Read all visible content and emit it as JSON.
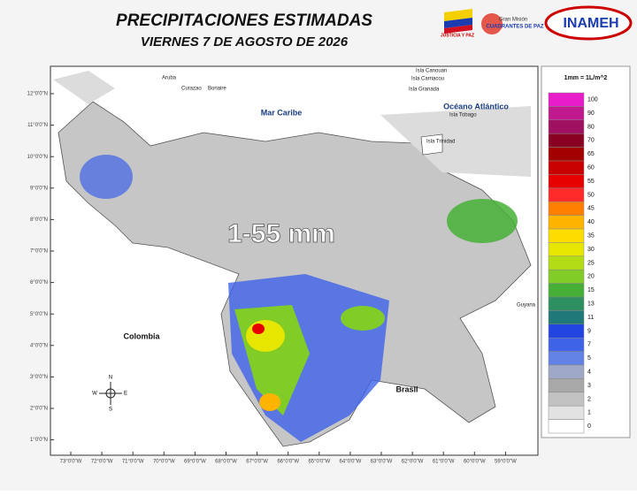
{
  "header": {
    "title": "PRECIPITACIONES  ESTIMADAS",
    "subtitle": "VIERNES 7 DE AGOSTO DE 2026",
    "logos": [
      "JUSTICIA Y PAZ",
      "Gran Misión",
      "CUADRANTES DE PAZ",
      "INAMEH"
    ]
  },
  "map": {
    "headline": "1-55 mm",
    "places": [
      "Aruba",
      "Curazao",
      "Bonaire",
      "Isla Canouan",
      "Isla Carriacou",
      "Isla Granada",
      "Isla Tobago",
      "Isla Trinidad",
      "Guyana"
    ],
    "regions": [
      "Mar Caribe",
      "Océano Atlántico",
      "Colombia",
      "Brasil"
    ],
    "compass": [
      "N",
      "S",
      "E",
      "W"
    ],
    "latitudes": [
      "12°0'0\"N",
      "11°0'0\"N",
      "10°0'0\"N",
      "9°0'0\"N",
      "8°0'0\"N",
      "7°0'0\"N",
      "6°0'0\"N",
      "5°0'0\"N",
      "4°0'0\"N",
      "3°0'0\"N",
      "2°0'0\"N",
      "1°0'0\"N"
    ],
    "longitudes": [
      "73°0'0\"W",
      "72°0'0\"W",
      "71°0'0\"W",
      "70°0'0\"W",
      "69°0'0\"W",
      "68°0'0\"W",
      "67°0'0\"W",
      "66°0'0\"W",
      "65°0'0\"W",
      "64°0'0\"W",
      "63°0'0\"W",
      "62°0'0\"W",
      "61°0'0\"W",
      "60°0'0\"W",
      "59°0'0\"W"
    ]
  },
  "legend": {
    "unit": "1mm = 1L/m^2",
    "items": [
      {
        "label": "100",
        "color": "#e81cc8"
      },
      {
        "label": "90",
        "color": "#c0188f"
      },
      {
        "label": "80",
        "color": "#a01060"
      },
      {
        "label": "70",
        "color": "#8a0022"
      },
      {
        "label": "65",
        "color": "#a30000"
      },
      {
        "label": "60",
        "color": "#c80000"
      },
      {
        "label": "55",
        "color": "#e60000"
      },
      {
        "label": "50",
        "color": "#ff2a2a"
      },
      {
        "label": "45",
        "color": "#ff8000"
      },
      {
        "label": "40",
        "color": "#ffb400"
      },
      {
        "label": "35",
        "color": "#ffdc00"
      },
      {
        "label": "30",
        "color": "#e6e600"
      },
      {
        "label": "25",
        "color": "#b4dc14"
      },
      {
        "label": "20",
        "color": "#82cc28"
      },
      {
        "label": "15",
        "color": "#46b036"
      },
      {
        "label": "13",
        "color": "#2e9060"
      },
      {
        "label": "11",
        "color": "#207878"
      },
      {
        "label": "9",
        "color": "#2244e0"
      },
      {
        "label": "7",
        "color": "#3e62e8"
      },
      {
        "label": "5",
        "color": "#6282e6"
      },
      {
        "label": "4",
        "color": "#a0a8c8"
      },
      {
        "label": "3",
        "color": "#a8a8a8"
      },
      {
        "label": "2",
        "color": "#c2c2c2"
      },
      {
        "label": "1",
        "color": "#e2e2e2"
      },
      {
        "label": "0",
        "color": "#ffffff"
      }
    ]
  }
}
